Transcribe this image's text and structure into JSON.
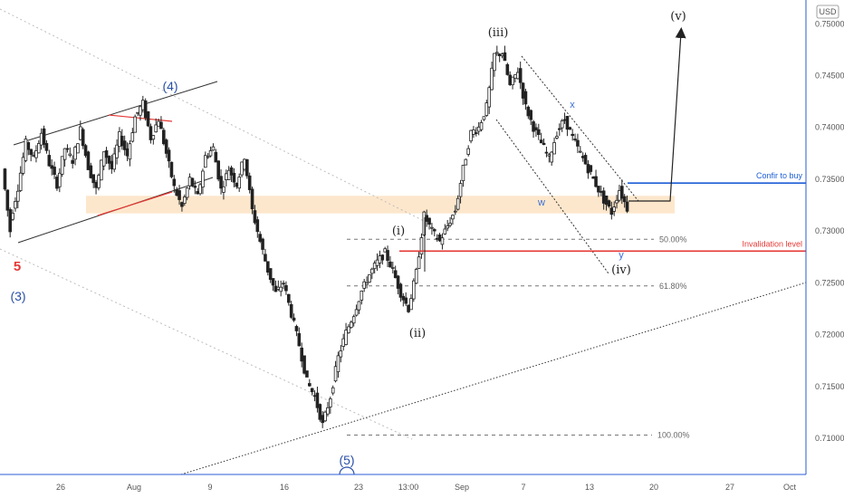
{
  "chart_data": {
    "type": "candlestick",
    "currency_label": "USD",
    "x_axis_ticks": [
      "26",
      "Aug",
      "9",
      "16",
      "23",
      "13:00",
      "Sep",
      "7",
      "13",
      "20",
      "27",
      "Oct"
    ],
    "y_axis_ticks": [
      "0.75000",
      "0.74500",
      "0.74000",
      "0.73500",
      "0.73000",
      "0.72500",
      "0.72000",
      "0.71500",
      "0.71000"
    ],
    "ylim": [
      0.7065,
      0.7523
    ],
    "levels": {
      "confirm": {
        "label": "Confir to buy",
        "value": 0.73463,
        "tag": "0.73463",
        "color": "#1e5fd6"
      },
      "invalidation": {
        "label": "Invalidation level",
        "value": 0.72806,
        "tag": "0.72806",
        "color": "#e53935"
      }
    },
    "fib_levels": [
      {
        "label": "50.00%",
        "value": 0.7292
      },
      {
        "label": "61.80%",
        "value": 0.7247
      },
      {
        "label": "100.00%",
        "value": 0.7103
      }
    ],
    "support_zone": {
      "top": 0.7334,
      "bottom": 0.7317,
      "color": "#fde7cc"
    },
    "wave_labels": [
      {
        "text": "5",
        "color": "#e53935"
      },
      {
        "text": "(3)",
        "color": "#2a4fa8"
      },
      {
        "text": "(4)",
        "color": "#2a4fa8"
      },
      {
        "text": "(5)",
        "color": "#2a4fa8"
      },
      {
        "text": "(i)",
        "color": "#222222"
      },
      {
        "text": "(ii)",
        "color": "#222222"
      },
      {
        "text": "(iii)",
        "color": "#222222"
      },
      {
        "text": "(iv)",
        "color": "#222222"
      },
      {
        "text": "(v)",
        "color": "#222222"
      },
      {
        "text": "x",
        "color": "#3a6fd8"
      },
      {
        "text": "w",
        "color": "#3a6fd8"
      },
      {
        "text": "y",
        "color": "#3a6fd8"
      }
    ],
    "price_path": [
      [
        0.736,
        0.73
      ],
      [
        0.731,
        0.7342
      ],
      [
        0.7342,
        0.7385
      ],
      [
        0.7385,
        0.737
      ],
      [
        0.737,
        0.7395
      ],
      [
        0.7395,
        0.7365
      ],
      [
        0.7365,
        0.7345
      ],
      [
        0.7345,
        0.738
      ],
      [
        0.738,
        0.7368
      ],
      [
        0.7368,
        0.7398
      ],
      [
        0.7398,
        0.7362
      ],
      [
        0.7362,
        0.734
      ],
      [
        0.734,
        0.7378
      ],
      [
        0.7378,
        0.736
      ],
      [
        0.736,
        0.7392
      ],
      [
        0.7392,
        0.7373
      ],
      [
        0.7373,
        0.741
      ],
      [
        0.741,
        0.7423
      ],
      [
        0.7423,
        0.739
      ],
      [
        0.739,
        0.7408
      ],
      [
        0.7408,
        0.7375
      ],
      [
        0.7375,
        0.7342
      ],
      [
        0.7342,
        0.7323
      ],
      [
        0.7323,
        0.735
      ],
      [
        0.735,
        0.7333
      ],
      [
        0.7333,
        0.7372
      ],
      [
        0.7372,
        0.738
      ],
      [
        0.738,
        0.734
      ],
      [
        0.734,
        0.736
      ],
      [
        0.736,
        0.7345
      ],
      [
        0.7345,
        0.7372
      ],
      [
        0.7372,
        0.732
      ],
      [
        0.732,
        0.729
      ],
      [
        0.729,
        0.7262
      ],
      [
        0.7262,
        0.724
      ],
      [
        0.724,
        0.725
      ],
      [
        0.725,
        0.722
      ],
      [
        0.722,
        0.719
      ],
      [
        0.719,
        0.7155
      ],
      [
        0.7155,
        0.714
      ],
      [
        0.714,
        0.7113
      ],
      [
        0.7113,
        0.714
      ],
      [
        0.714,
        0.7178
      ],
      [
        0.7178,
        0.7202
      ],
      [
        0.7202,
        0.722
      ],
      [
        0.722,
        0.7242
      ],
      [
        0.7242,
        0.7258
      ],
      [
        0.7258,
        0.727
      ],
      [
        0.727,
        0.7279
      ],
      [
        0.7279,
        0.7262
      ],
      [
        0.7262,
        0.724
      ],
      [
        0.724,
        0.7225
      ],
      [
        0.7225,
        0.726
      ],
      [
        0.726,
        0.7315
      ],
      [
        0.7315,
        0.73
      ],
      [
        0.73,
        0.729
      ],
      [
        0.729,
        0.7305
      ],
      [
        0.7305,
        0.732
      ],
      [
        0.732,
        0.736
      ],
      [
        0.736,
        0.7395
      ],
      [
        0.7395,
        0.74
      ],
      [
        0.74,
        0.742
      ],
      [
        0.742,
        0.747
      ],
      [
        0.747,
        0.7472
      ],
      [
        0.7472,
        0.744
      ],
      [
        0.744,
        0.7455
      ],
      [
        0.7455,
        0.742
      ],
      [
        0.742,
        0.74
      ],
      [
        0.74,
        0.7385
      ],
      [
        0.7385,
        0.737
      ],
      [
        0.737,
        0.7395
      ],
      [
        0.7395,
        0.7408
      ],
      [
        0.7408,
        0.739
      ],
      [
        0.739,
        0.7375
      ],
      [
        0.7375,
        0.736
      ],
      [
        0.736,
        0.7345
      ],
      [
        0.7345,
        0.733
      ],
      [
        0.733,
        0.7318
      ],
      [
        0.7318,
        0.734
      ],
      [
        0.734,
        0.7322
      ]
    ]
  }
}
